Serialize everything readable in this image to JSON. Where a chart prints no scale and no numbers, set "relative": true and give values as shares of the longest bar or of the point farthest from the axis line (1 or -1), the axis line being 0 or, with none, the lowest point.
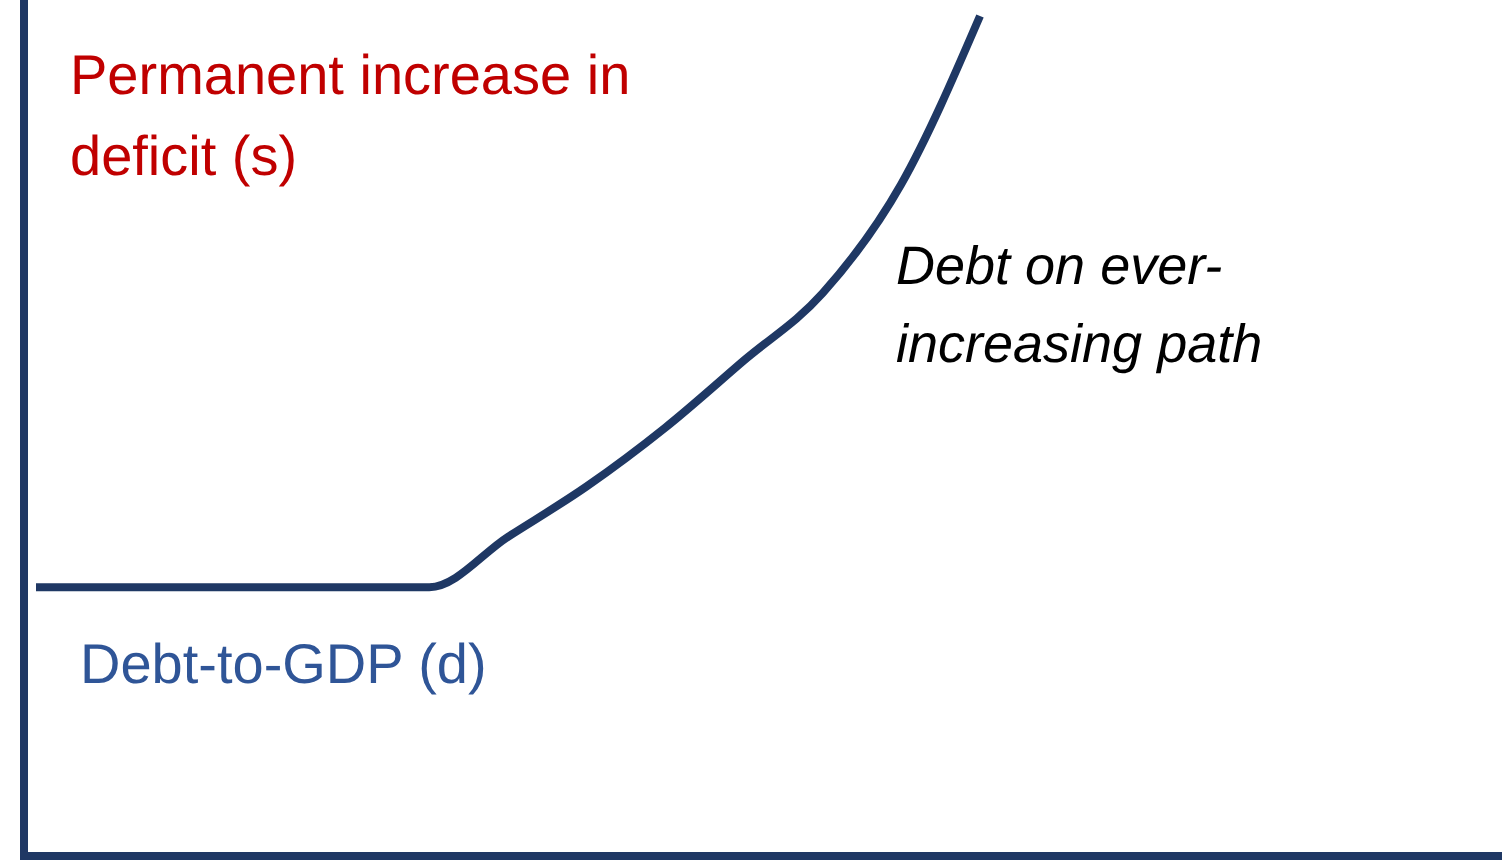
{
  "chart_data": {
    "type": "line",
    "relative": true,
    "categories": [
      null,
      null,
      null,
      null,
      null,
      null,
      null,
      null,
      null,
      null,
      null,
      null,
      null
    ],
    "series": [
      {
        "name": "Debt-to-GDP (d)",
        "color": "#1f3864",
        "values": [
          0.32,
          0.32,
          0.32,
          0.32,
          0.32,
          0.32,
          0.38,
          0.44,
          0.51,
          0.59,
          0.67,
          0.8,
          1
        ]
      }
    ],
    "annotations": [
      "Permanent increase in deficit (s)",
      "Debt on ever-increasing path"
    ],
    "marker": "none",
    "line_style": "solid"
  }
}
